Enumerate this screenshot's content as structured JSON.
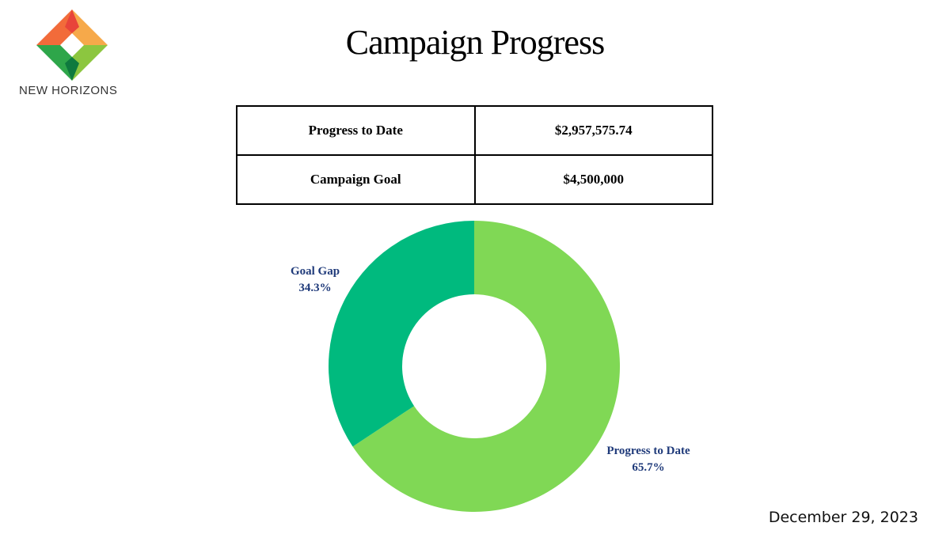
{
  "brand": {
    "name": "NEW HORIZONS",
    "colors": [
      "#f26b3a",
      "#f6a94a",
      "#e8443a",
      "#8cc63f",
      "#2ea64a",
      "#0e7a3e"
    ]
  },
  "title": "Campaign Progress",
  "summary_table": {
    "rows": [
      {
        "label": "Progress to Date",
        "value": "$2,957,575.74"
      },
      {
        "label": "Campaign Goal",
        "value": "$4,500,000"
      }
    ]
  },
  "chart_data": {
    "type": "pie",
    "donut": true,
    "slices": [
      {
        "label": "Progress to Date",
        "percent_label": "65.7%",
        "value": 65.7,
        "color": "#80d855"
      },
      {
        "label": "Goal Gap",
        "percent_label": "34.3%",
        "value": 34.3,
        "color": "#00ba7e"
      }
    ]
  },
  "date": "December 29, 2023"
}
